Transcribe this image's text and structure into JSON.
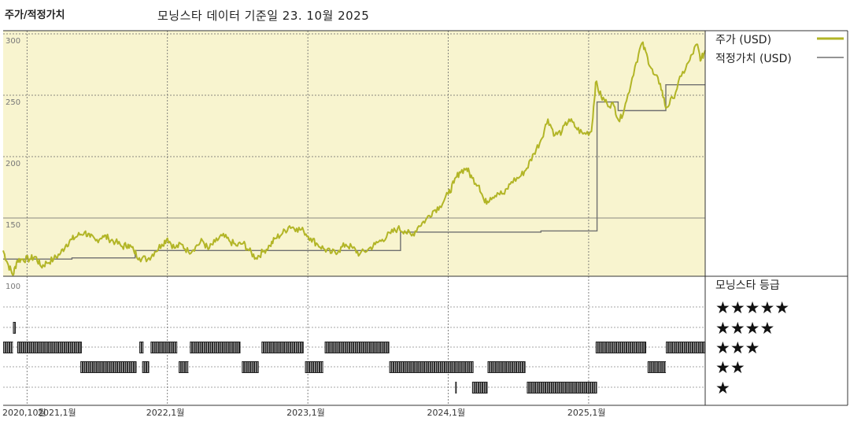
{
  "header": {
    "title": "주가/적정가치",
    "subtitle": "모닝스타 데이터 기준일 23. 10월 2025"
  },
  "colors": {
    "price": "#b2b526",
    "fair_value": "#707070",
    "background_fill": "#f8f4cf",
    "grid": "#666666",
    "rating_bar": "#222222"
  },
  "chart_data": {
    "type": "line",
    "title": "주가/적정가치",
    "subtitle": "모닝스타 데이터 기준일 23. 10월 2025",
    "ylim": [
      100,
      300
    ],
    "y_ticks": [
      "300",
      "250",
      "200",
      "150",
      "100"
    ],
    "y_tick_values": [
      300,
      250,
      200,
      150,
      100
    ],
    "x_range": [
      2020.83,
      2025.83
    ],
    "x_ticks": [
      {
        "label": "2020,10월",
        "x": 2020.83
      },
      {
        "label": "2021,1월",
        "x": 2021.0
      },
      {
        "label": "2022,1월",
        "x": 2022.0
      },
      {
        "label": "2023,1월",
        "x": 2023.0
      },
      {
        "label": "2024,1월",
        "x": 2024.0
      },
      {
        "label": "2025,1월",
        "x": 2025.0
      }
    ],
    "grid": true,
    "legend_position": "right",
    "series": [
      {
        "name": "주가 (USD)",
        "style": "line",
        "points": [
          [
            2020.83,
            128
          ],
          [
            2020.86,
            118
          ],
          [
            2020.9,
            108
          ],
          [
            2020.93,
            120
          ],
          [
            2020.97,
            121
          ],
          [
            2021.02,
            121
          ],
          [
            2021.06,
            123
          ],
          [
            2021.1,
            115
          ],
          [
            2021.14,
            118
          ],
          [
            2021.19,
            121
          ],
          [
            2021.24,
            126
          ],
          [
            2021.28,
            133
          ],
          [
            2021.32,
            137
          ],
          [
            2021.36,
            140
          ],
          [
            2021.41,
            143
          ],
          [
            2021.45,
            139
          ],
          [
            2021.49,
            136
          ],
          [
            2021.54,
            140
          ],
          [
            2021.58,
            138
          ],
          [
            2021.63,
            135
          ],
          [
            2021.68,
            131
          ],
          [
            2021.72,
            133
          ],
          [
            2021.76,
            128
          ],
          [
            2021.8,
            122
          ],
          [
            2021.86,
            121
          ],
          [
            2021.91,
            127
          ],
          [
            2021.96,
            133
          ],
          [
            2022.0,
            138
          ],
          [
            2022.05,
            130
          ],
          [
            2022.1,
            133
          ],
          [
            2022.15,
            127
          ],
          [
            2022.2,
            131
          ],
          [
            2022.25,
            136
          ],
          [
            2022.29,
            129
          ],
          [
            2022.34,
            135
          ],
          [
            2022.39,
            140
          ],
          [
            2022.44,
            136
          ],
          [
            2022.49,
            132
          ],
          [
            2022.54,
            134
          ],
          [
            2022.58,
            128
          ],
          [
            2022.63,
            122
          ],
          [
            2022.68,
            127
          ],
          [
            2022.73,
            132
          ],
          [
            2022.77,
            138
          ],
          [
            2022.82,
            142
          ],
          [
            2022.87,
            148
          ],
          [
            2022.92,
            146
          ],
          [
            2022.97,
            144
          ],
          [
            2023.02,
            138
          ],
          [
            2023.07,
            133
          ],
          [
            2023.12,
            129
          ],
          [
            2023.17,
            126
          ],
          [
            2023.22,
            128
          ],
          [
            2023.27,
            133
          ],
          [
            2023.32,
            130
          ],
          [
            2023.37,
            125
          ],
          [
            2023.43,
            129
          ],
          [
            2023.48,
            133
          ],
          [
            2023.53,
            137
          ],
          [
            2023.59,
            142
          ],
          [
            2023.64,
            146
          ],
          [
            2023.69,
            144
          ],
          [
            2023.74,
            140
          ],
          [
            2023.79,
            148
          ],
          [
            2023.84,
            153
          ],
          [
            2023.89,
            160
          ],
          [
            2023.94,
            164
          ],
          [
            2024.0,
            174
          ],
          [
            2024.04,
            183
          ],
          [
            2024.08,
            192
          ],
          [
            2024.13,
            195
          ],
          [
            2024.17,
            187
          ],
          [
            2024.22,
            181
          ],
          [
            2024.26,
            167
          ],
          [
            2024.3,
            171
          ],
          [
            2024.35,
            175
          ],
          [
            2024.4,
            174
          ],
          [
            2024.45,
            184
          ],
          [
            2024.51,
            188
          ],
          [
            2024.56,
            195
          ],
          [
            2024.61,
            207
          ],
          [
            2024.66,
            218
          ],
          [
            2024.71,
            235
          ],
          [
            2024.76,
            222
          ],
          [
            2024.81,
            225
          ],
          [
            2024.86,
            235
          ],
          [
            2024.91,
            228
          ],
          [
            2024.96,
            223
          ],
          [
            2025.02,
            225
          ],
          [
            2025.05,
            265
          ],
          [
            2025.09,
            253
          ],
          [
            2025.13,
            248
          ],
          [
            2025.18,
            246
          ],
          [
            2025.22,
            233
          ],
          [
            2025.27,
            250
          ],
          [
            2025.33,
            278
          ],
          [
            2025.38,
            297
          ],
          [
            2025.42,
            285
          ],
          [
            2025.46,
            272
          ],
          [
            2025.51,
            264
          ],
          [
            2025.55,
            244
          ],
          [
            2025.6,
            252
          ],
          [
            2025.66,
            270
          ],
          [
            2025.72,
            283
          ],
          [
            2025.77,
            296
          ],
          [
            2025.8,
            283
          ],
          [
            2025.83,
            291
          ]
        ]
      },
      {
        "name": "적정가치 (USD)",
        "style": "step",
        "points": [
          [
            2020.83,
            121
          ],
          [
            2021.32,
            121
          ],
          [
            2021.32,
            122
          ],
          [
            2021.77,
            122
          ],
          [
            2021.77,
            128
          ],
          [
            2023.66,
            128
          ],
          [
            2023.66,
            143
          ],
          [
            2024.66,
            143
          ],
          [
            2024.66,
            144
          ],
          [
            2025.06,
            144
          ],
          [
            2025.06,
            249
          ],
          [
            2025.21,
            249
          ],
          [
            2025.21,
            242
          ],
          [
            2025.55,
            242
          ],
          [
            2025.55,
            263
          ],
          [
            2025.83,
            263
          ]
        ]
      }
    ],
    "rating_panel": {
      "title": "모닝스타 등급",
      "levels": [
        "★★★★★",
        "★★★★",
        "★★★",
        "★★",
        "★"
      ],
      "segments": [
        {
          "stars": 4,
          "start": 2020.9,
          "end": 2020.92
        },
        {
          "stars": 3,
          "start": 2020.83,
          "end": 2020.9
        },
        {
          "stars": 3,
          "start": 2020.93,
          "end": 2021.39
        },
        {
          "stars": 2,
          "start": 2021.38,
          "end": 2021.78
        },
        {
          "stars": 3,
          "start": 2021.8,
          "end": 2021.83
        },
        {
          "stars": 2,
          "start": 2021.82,
          "end": 2021.87
        },
        {
          "stars": 3,
          "start": 2021.88,
          "end": 2022.07
        },
        {
          "stars": 2,
          "start": 2022.08,
          "end": 2022.15
        },
        {
          "stars": 3,
          "start": 2022.16,
          "end": 2022.52
        },
        {
          "stars": 2,
          "start": 2022.53,
          "end": 2022.65
        },
        {
          "stars": 3,
          "start": 2022.67,
          "end": 2022.97
        },
        {
          "stars": 2,
          "start": 2022.98,
          "end": 2023.11
        },
        {
          "stars": 3,
          "start": 2023.12,
          "end": 2023.58
        },
        {
          "stars": 2,
          "start": 2023.58,
          "end": 2024.18
        },
        {
          "stars": 1,
          "start": 2024.05,
          "end": 2024.06
        },
        {
          "stars": 1,
          "start": 2024.17,
          "end": 2024.28
        },
        {
          "stars": 2,
          "start": 2024.28,
          "end": 2024.55
        },
        {
          "stars": 1,
          "start": 2024.56,
          "end": 2025.06
        },
        {
          "stars": 3,
          "start": 2025.05,
          "end": 2025.41
        },
        {
          "stars": 2,
          "start": 2025.42,
          "end": 2025.55
        },
        {
          "stars": 3,
          "start": 2025.55,
          "end": 2025.83
        }
      ]
    }
  }
}
